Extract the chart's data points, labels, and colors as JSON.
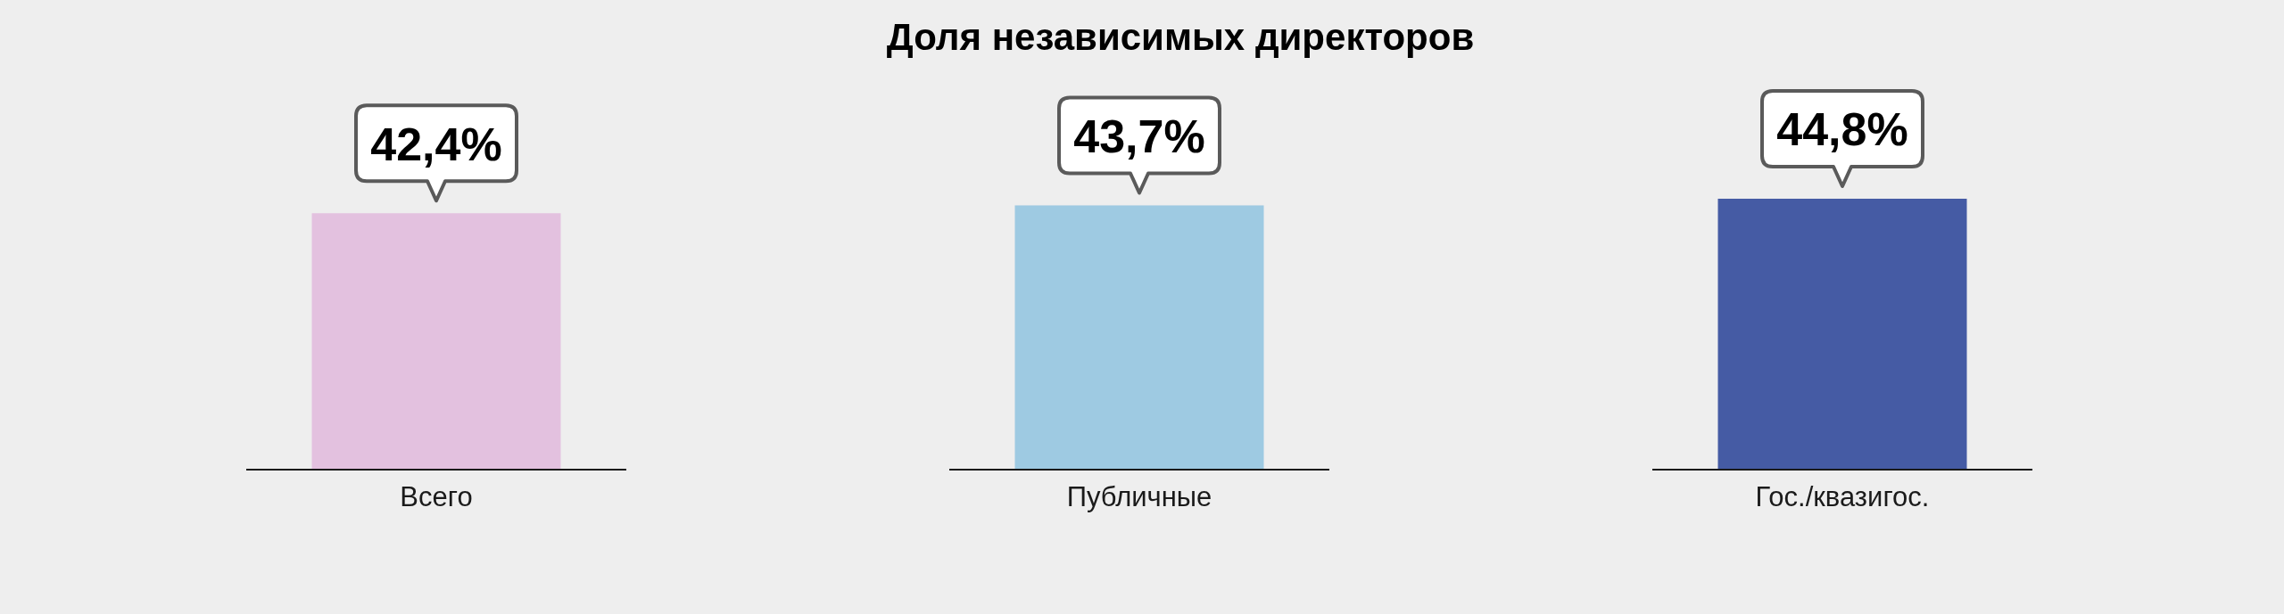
{
  "chart_data": {
    "type": "bar",
    "title": "Доля независимых директоров",
    "categories": [
      "Всего",
      "Публичные",
      "Гос./квазигос."
    ],
    "values": [
      42.4,
      43.7,
      44.8
    ],
    "colors": [
      "#e3c1df",
      "#9ecae2",
      "#455ba4"
    ],
    "value_labels": [
      "42,4%",
      "43,7%",
      "44,8%"
    ]
  }
}
